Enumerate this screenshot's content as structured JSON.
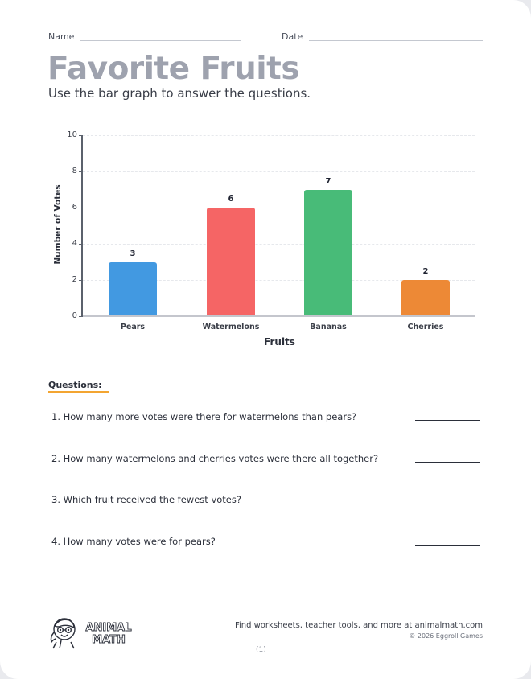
{
  "header": {
    "name_label": "Name",
    "date_label": "Date",
    "title": "Favorite Fruits",
    "subtitle": "Use the bar graph to answer the questions."
  },
  "chart_data": {
    "type": "bar",
    "title": "",
    "categories": [
      "Pears",
      "Watermelons",
      "Bananas",
      "Cherries"
    ],
    "values": [
      3,
      6,
      7,
      2
    ],
    "value_labels": [
      "3",
      "6",
      "7",
      "2"
    ],
    "colors": [
      "#4299e1",
      "#f56565",
      "#48bb78",
      "#ed8936"
    ],
    "xlabel": "Fruits",
    "ylabel": "Number of Votes",
    "ylim": [
      0,
      10
    ],
    "yticks": [
      "0",
      "2",
      "4",
      "6",
      "8",
      "10"
    ],
    "grid": true,
    "legend": "none"
  },
  "questions": {
    "heading": "Questions:",
    "items": [
      {
        "text": "1. How many more votes were there for watermelons than pears?"
      },
      {
        "text": "2. How many watermelons and cherries votes were there all together?"
      },
      {
        "text": "3. Which fruit received the fewest votes?"
      },
      {
        "text": "4. How many votes were for pears?"
      }
    ]
  },
  "footer": {
    "logo_text_line1": "ANIMAL",
    "logo_text_line2": "MATH",
    "promo": "Find worksheets, teacher tools, and more at animalmath.com",
    "copyright": "© 2026 Eggroll Games",
    "page_number": "(1)"
  },
  "colors": {
    "title": "#9ea2ae",
    "accent_underline": "#f3a531"
  }
}
